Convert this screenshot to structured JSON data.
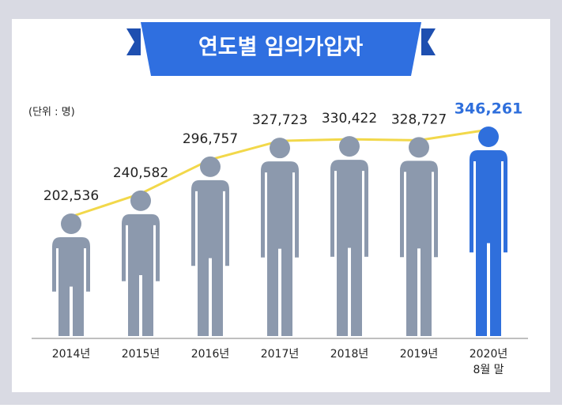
{
  "chart_data": {
    "type": "pictogram",
    "title": "연도별 임의가입자",
    "unit_label": "(단위 : 명)",
    "categories": [
      "2014년",
      "2015년",
      "2016년",
      "2017년",
      "2018년",
      "2019년",
      "2020년\n8월 말"
    ],
    "values": [
      202536,
      240582,
      296757,
      327723,
      330422,
      328727,
      346261
    ],
    "value_labels": [
      "202,536",
      "240,582",
      "296,757",
      "327,723",
      "330,422",
      "328,727",
      "346,261"
    ],
    "colors": [
      "#8c99ad",
      "#8c99ad",
      "#8c99ad",
      "#8c99ad",
      "#8c99ad",
      "#8c99ad",
      "#2f6fdc"
    ],
    "label_colors": [
      "#222222",
      "#222222",
      "#222222",
      "#222222",
      "#222222",
      "#222222",
      "#2f6fdc"
    ],
    "line_color": "#f2d84a"
  }
}
